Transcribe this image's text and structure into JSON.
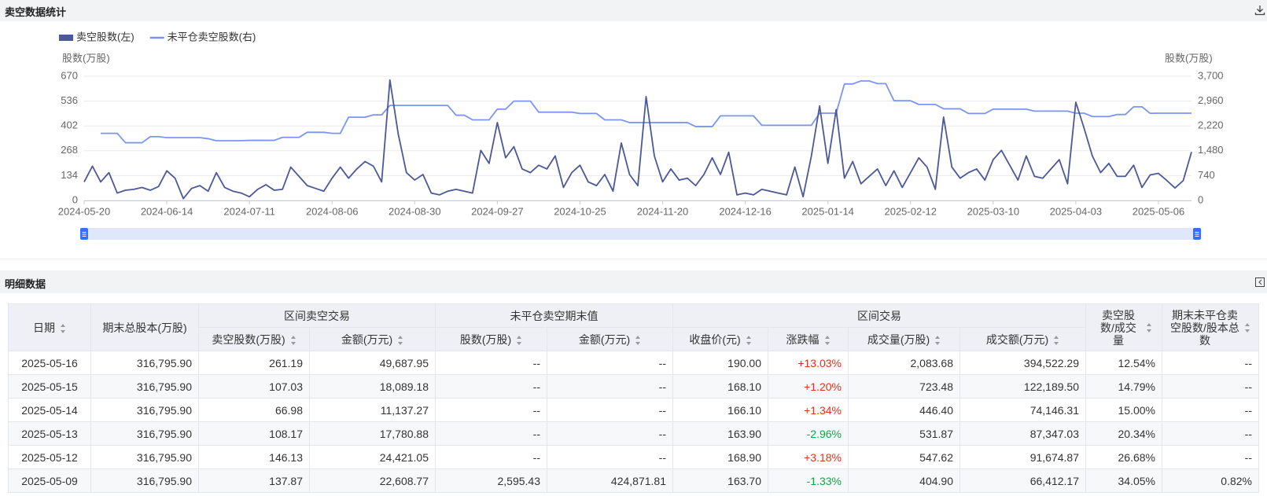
{
  "header": {
    "title": "卖空数据统计"
  },
  "chart_data": {
    "type": "line",
    "y_label": "股数(万股)",
    "y2_label": "股数(万股)",
    "grid": true,
    "legend_position": "top-left",
    "categories": [
      "2024-05-20",
      null,
      null,
      null,
      null,
      null,
      null,
      null,
      null,
      null,
      "2024-06-14",
      null,
      null,
      null,
      null,
      null,
      null,
      null,
      null,
      null,
      "2024-07-11",
      null,
      null,
      null,
      null,
      null,
      null,
      null,
      null,
      null,
      "2024-08-06",
      null,
      null,
      null,
      null,
      null,
      null,
      null,
      null,
      null,
      "2024-08-30",
      null,
      null,
      null,
      null,
      null,
      null,
      null,
      null,
      null,
      "2024-09-27",
      null,
      null,
      null,
      null,
      null,
      null,
      null,
      null,
      null,
      "2024-10-25",
      null,
      null,
      null,
      null,
      null,
      null,
      null,
      null,
      null,
      "2024-11-20",
      null,
      null,
      null,
      null,
      null,
      null,
      null,
      null,
      null,
      "2024-12-16",
      null,
      null,
      null,
      null,
      null,
      null,
      null,
      null,
      null,
      "2025-01-14",
      null,
      null,
      null,
      null,
      null,
      null,
      null,
      null,
      null,
      "2025-02-12",
      null,
      null,
      null,
      null,
      null,
      null,
      null,
      null,
      null,
      "2025-03-10",
      null,
      null,
      null,
      null,
      null,
      null,
      null,
      null,
      null,
      "2025-04-03",
      null,
      null,
      null,
      null,
      null,
      null,
      null,
      null,
      null,
      "2025-05-06",
      null,
      null,
      null,
      null
    ],
    "series": [
      {
        "name": "卖空股数(左)",
        "color": "#4b5899",
        "values": [
          100,
          185,
          100,
          150,
          40,
          55,
          60,
          70,
          55,
          75,
          160,
          120,
          10,
          65,
          80,
          50,
          150,
          70,
          50,
          40,
          20,
          60,
          85,
          55,
          60,
          180,
          130,
          80,
          65,
          50,
          120,
          180,
          120,
          170,
          210,
          185,
          100,
          650,
          360,
          150,
          110,
          140,
          40,
          30,
          50,
          60,
          50,
          40,
          270,
          200,
          420,
          230,
          290,
          170,
          150,
          190,
          170,
          240,
          70,
          150,
          190,
          100,
          80,
          140,
          50,
          310,
          140,
          80,
          560,
          240,
          100,
          170,
          110,
          120,
          80,
          140,
          230,
          140,
          260,
          30,
          40,
          30,
          60,
          50,
          40,
          30,
          180,
          20,
          240,
          510,
          200,
          490,
          120,
          210,
          90,
          130,
          170,
          80,
          160,
          70,
          150,
          230,
          180,
          60,
          450,
          180,
          120,
          150,
          170,
          110,
          220,
          270,
          190,
          110,
          240,
          130,
          120,
          170,
          220,
          90,
          530,
          390,
          240,
          150,
          200,
          130,
          130,
          190,
          70,
          137.87,
          146.13,
          108.17,
          66.98,
          107.03,
          261.19
        ]
      },
      {
        "name": "未平仓卖空股数(右)",
        "color": "#7b96f2",
        "axis": "y2",
        "values": [
          null,
          null,
          2000,
          2000,
          2000,
          1720,
          1720,
          1720,
          1900,
          1900,
          1870,
          1870,
          1870,
          1870,
          1870,
          1840,
          1780,
          1780,
          1780,
          1780,
          1790,
          1790,
          1790,
          1790,
          1880,
          1880,
          1880,
          2030,
          2030,
          2030,
          2000,
          2000,
          2480,
          2480,
          2480,
          2550,
          2550,
          2830,
          2830,
          2830,
          2830,
          2830,
          2830,
          2830,
          2830,
          2540,
          2540,
          2400,
          2400,
          2400,
          2720,
          2720,
          2960,
          2960,
          2960,
          2630,
          2630,
          2630,
          2630,
          2630,
          2590,
          2590,
          2590,
          2400,
          2400,
          2400,
          2320,
          2320,
          2320,
          2320,
          2320,
          2320,
          2320,
          2320,
          2200,
          2200,
          2200,
          2520,
          2520,
          2520,
          2520,
          2520,
          2240,
          2240,
          2240,
          2240,
          2240,
          2240,
          2240,
          2600,
          2600,
          2600,
          3470,
          3470,
          3560,
          3560,
          3480,
          3480,
          2970,
          2970,
          2970,
          2860,
          2860,
          2860,
          2730,
          2730,
          2730,
          2590,
          2590,
          2590,
          2720,
          2720,
          2720,
          2720,
          2720,
          2660,
          2660,
          2660,
          2660,
          2660,
          2600,
          2600,
          2500,
          2500,
          2500,
          2560,
          2560,
          2790,
          2790,
          2595.43,
          2600,
          2600,
          2600,
          2600,
          2600
        ]
      }
    ],
    "ylim": [
      0,
      670
    ],
    "yticks": [
      0,
      134,
      268,
      402,
      536,
      670
    ],
    "y2lim": [
      0,
      3700
    ],
    "y2ticks": [
      0,
      740,
      {
        "value": 1480,
        "label": "1,480"
      },
      {
        "value": 2220,
        "label": "2,220"
      },
      {
        "value": 2960,
        "label": "2,960"
      },
      {
        "value": 3700,
        "label": "3,700"
      }
    ]
  },
  "detail": {
    "title": "明细数据",
    "header_top": [
      "日期",
      "期末总股本(万股)",
      "区间卖空交易",
      "未平仓卖空期末值",
      "区间交易",
      "卖空股数/成交量",
      "期末未平仓卖空股数/股本总数"
    ],
    "header_sub": [
      "卖空股数(万股)",
      "金额(万元)",
      "股数(万股)",
      "金额(万元)",
      "收盘价(元)",
      "涨跌幅",
      "成交量(万股)",
      "成交额(万元)"
    ],
    "rows": [
      [
        "2025-05-16",
        "316,795.90",
        "261.19",
        "49,687.95",
        "--",
        "--",
        "190.00",
        "+13.03%",
        "2,083.68",
        "394,522.29",
        "12.54%",
        "--"
      ],
      [
        "2025-05-15",
        "316,795.90",
        "107.03",
        "18,089.18",
        "--",
        "--",
        "168.10",
        "+1.20%",
        "723.48",
        "122,189.50",
        "14.79%",
        "--"
      ],
      [
        "2025-05-14",
        "316,795.90",
        "66.98",
        "11,137.27",
        "--",
        "--",
        "166.10",
        "+1.34%",
        "446.40",
        "74,146.31",
        "15.00%",
        "--"
      ],
      [
        "2025-05-13",
        "316,795.90",
        "108.17",
        "17,780.88",
        "--",
        "--",
        "163.90",
        "-2.96%",
        "531.87",
        "87,347.03",
        "20.34%",
        "--"
      ],
      [
        "2025-05-12",
        "316,795.90",
        "146.13",
        "24,421.05",
        "--",
        "--",
        "168.90",
        "+3.18%",
        "547.62",
        "91,674.87",
        "26.68%",
        "--"
      ],
      [
        "2025-05-09",
        "316,795.90",
        "137.87",
        "22,608.77",
        "2,595.43",
        "424,871.81",
        "163.70",
        "-1.33%",
        "404.90",
        "66,412.17",
        "34.05%",
        "0.82%"
      ]
    ]
  }
}
